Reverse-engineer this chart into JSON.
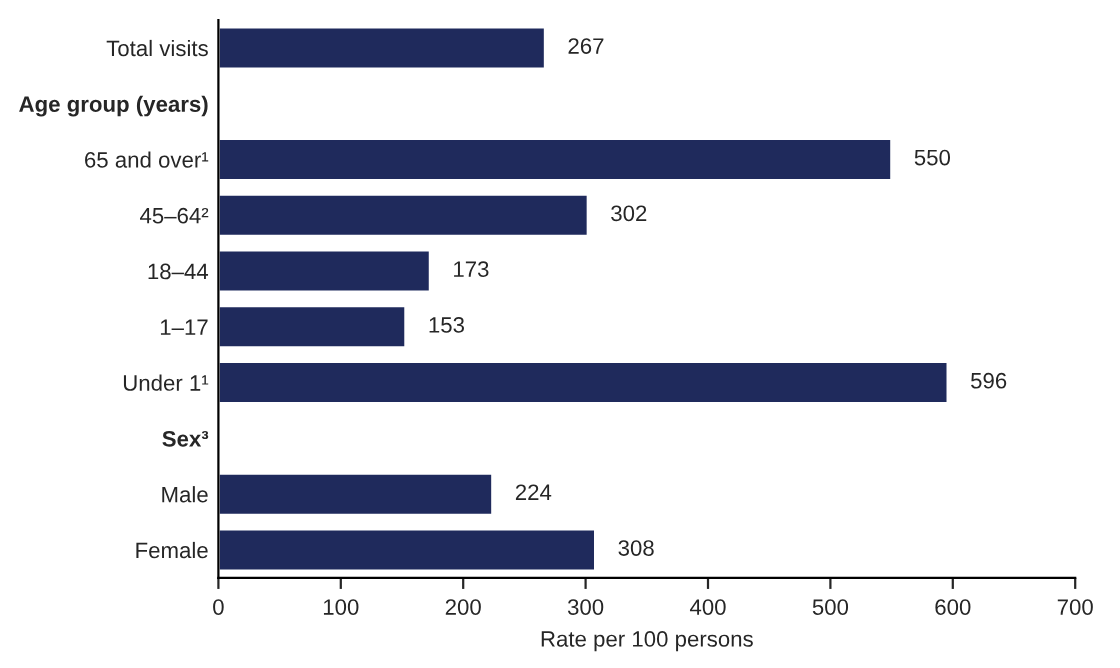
{
  "chart_data": {
    "type": "bar",
    "orientation": "horizontal",
    "xlabel": "Rate per 100 persons",
    "categories": [
      "Total visits",
      "Age group (years)",
      "65 and over¹",
      "45–64²",
      "18–44",
      "1–17",
      "Under 1¹",
      "Sex³",
      "Male",
      "Female"
    ],
    "values": [
      267,
      null,
      550,
      302,
      173,
      153,
      596,
      null,
      224,
      308
    ],
    "color": "#1f2a5c",
    "xlim": [
      0,
      700
    ],
    "xticks": [
      0,
      100,
      200,
      300,
      400,
      500,
      600,
      700
    ],
    "grid": false,
    "data_labels": true
  }
}
